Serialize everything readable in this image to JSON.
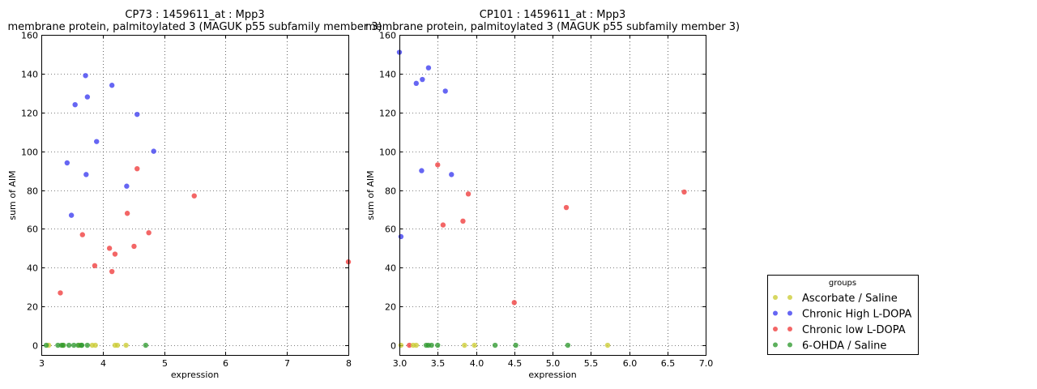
{
  "colors": {
    "Ascorbate / Saline": "#cccc33",
    "Chronic High L-DOPA": "#3b3bef",
    "Chronic low L-DOPA": "#ef3b3b",
    "6-OHDA / Saline": "#2f9a2f"
  },
  "legend": {
    "title": "groups",
    "placement": "right",
    "entries": [
      "Ascorbate / Saline",
      "Chronic High L-DOPA",
      "Chronic low L-DOPA",
      "6-OHDA / Saline"
    ]
  },
  "chart_data": [
    {
      "type": "scatter",
      "title": "CP73 : 1459611_at : Mpp3",
      "subtitle": "membrane protein, palmitoylated 3 (MAGUK p55 subfamily member 3)",
      "xlabel": "expression",
      "ylabel": "sum of AIM",
      "xlim": [
        3,
        8
      ],
      "ylim": [
        -5,
        160
      ],
      "xticks": [
        3,
        4,
        5,
        6,
        7,
        8
      ],
      "yticks": [
        0,
        20,
        40,
        60,
        80,
        100,
        120,
        140,
        160
      ],
      "grid": true,
      "series": [
        {
          "name": "Ascorbate / Saline",
          "x": [
            3.12,
            3.35,
            3.62,
            3.83,
            3.88,
            4.2,
            4.24,
            4.38
          ],
          "y": [
            0,
            0,
            0,
            0,
            0,
            0,
            0,
            0
          ]
        },
        {
          "name": "Chronic High L-DOPA",
          "x": [
            3.42,
            3.49,
            3.55,
            3.72,
            3.73,
            3.75,
            3.9,
            4.15,
            4.39,
            4.56,
            4.83
          ],
          "y": [
            94,
            67,
            124,
            139,
            88,
            128,
            105,
            134,
            82,
            119,
            100
          ]
        },
        {
          "name": "Chronic low L-DOPA",
          "x": [
            3.31,
            3.67,
            3.87,
            4.11,
            4.15,
            4.2,
            4.4,
            4.51,
            4.56,
            4.75,
            5.49,
            8.0
          ],
          "y": [
            27,
            57,
            41,
            50,
            38,
            47,
            68,
            51,
            91,
            58,
            77,
            43
          ]
        },
        {
          "name": "6-OHDA / Saline",
          "x": [
            3.08,
            3.27,
            3.33,
            3.36,
            3.45,
            3.53,
            3.6,
            3.65,
            3.66,
            3.75,
            4.7
          ],
          "y": [
            0,
            0,
            0,
            0,
            0,
            0,
            0,
            0,
            0,
            0,
            0
          ]
        }
      ]
    },
    {
      "type": "scatter",
      "title": "CP101 : 1459611_at : Mpp3",
      "subtitle": "membrane protein, palmitoylated 3 (MAGUK p55 subfamily member 3)",
      "xlabel": "expression",
      "ylabel": "sum of AIM",
      "xlim": [
        3,
        7
      ],
      "ylim": [
        -5,
        160
      ],
      "xticks": [
        3.0,
        3.5,
        4.0,
        4.5,
        5.0,
        5.5,
        6.0,
        6.5,
        7.0
      ],
      "yticks": [
        0,
        20,
        40,
        60,
        80,
        100,
        120,
        140,
        160
      ],
      "grid": true,
      "series": [
        {
          "name": "Ascorbate / Saline",
          "x": [
            3.02,
            3.18,
            3.22,
            3.85,
            3.98,
            5.72
          ],
          "y": [
            0,
            0,
            0,
            0,
            0,
            0
          ]
        },
        {
          "name": "Chronic High L-DOPA",
          "x": [
            3.0,
            3.02,
            3.22,
            3.3,
            3.38,
            3.6,
            3.68,
            3.29
          ],
          "y": [
            151,
            56,
            135,
            137,
            143,
            131,
            88,
            90
          ]
        },
        {
          "name": "Chronic low L-DOPA",
          "x": [
            3.13,
            3.5,
            3.57,
            3.83,
            3.9,
            4.5,
            5.18,
            6.72
          ],
          "y": [
            0,
            93,
            62,
            64,
            78,
            22,
            71,
            79
          ]
        },
        {
          "name": "6-OHDA / Saline",
          "x": [
            3.35,
            3.38,
            3.42,
            3.5,
            4.25,
            4.52,
            5.2
          ],
          "y": [
            0,
            0,
            0,
            0,
            0,
            0,
            0
          ]
        }
      ]
    }
  ]
}
